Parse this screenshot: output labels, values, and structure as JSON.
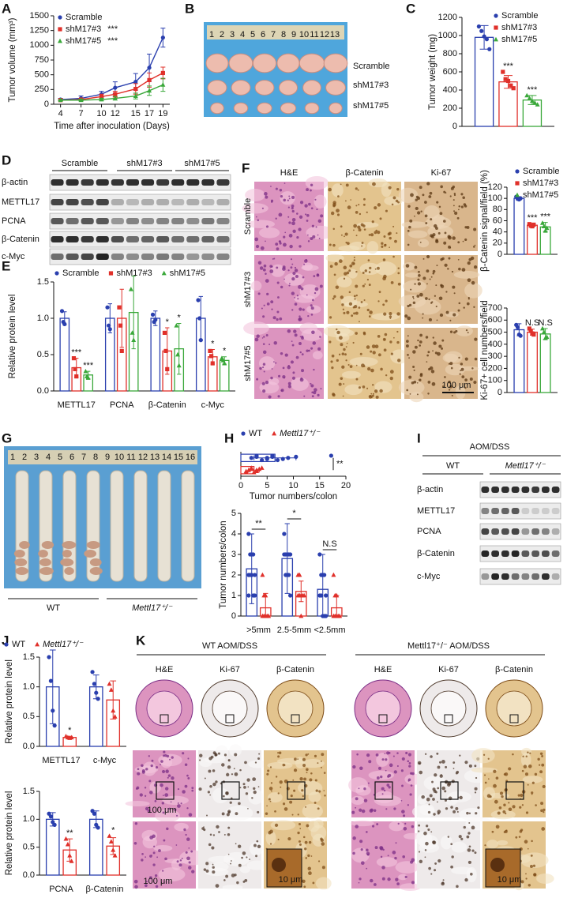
{
  "panel_labels": [
    "A",
    "B",
    "C",
    "D",
    "E",
    "F",
    "G",
    "H",
    "I",
    "J",
    "K"
  ],
  "photo_B": {
    "ruler": [
      1,
      2,
      3,
      4,
      5,
      6,
      7,
      8,
      9,
      10,
      11,
      12,
      13
    ],
    "rows": [
      "Scramble",
      "shM17#3",
      "shM17#5"
    ]
  },
  "blot_D": {
    "groups": [
      "Scramble",
      "shM17#3",
      "shM17#5"
    ],
    "rows": [
      "β-actin",
      "METTL17",
      "PCNA",
      "β-Catenin",
      "c-Myc"
    ]
  },
  "histology_F": {
    "columns": [
      "H&E",
      "β-Catenin",
      "Ki-67"
    ],
    "rows": [
      "Scramble",
      "shM17#3",
      "shM17#5"
    ],
    "scale": "100 μm"
  },
  "photo_G": {
    "ruler": [
      1,
      2,
      3,
      4,
      5,
      6,
      7,
      8,
      9,
      10,
      11,
      12,
      13,
      14,
      15,
      16
    ],
    "groups": [
      "WT",
      "Mettl17⁺/⁻"
    ]
  },
  "blot_I": {
    "title": "AOM/DSS",
    "groups": [
      "WT",
      "Mettl17⁺/⁻"
    ],
    "rows": [
      "β-actin",
      "METTL17",
      "PCNA",
      "β-Catenin",
      "c-Myc"
    ]
  },
  "histology_K": {
    "titles": [
      "WT AOM/DSS",
      "Mettl17⁺/⁻ AOM/DSS"
    ],
    "columns": [
      [
        "H&E",
        "Ki-67",
        "β-Catenin"
      ],
      [
        "H&E",
        "Ki-67",
        "β-Catenin"
      ]
    ],
    "scales": [
      "100 μm",
      "100 μm",
      "10 μm",
      "10 μm"
    ]
  },
  "chart_data": [
    {
      "type": "line",
      "ylabel": "Tumor volume (mm³)",
      "xlabel": "Time after inoculation (Days)",
      "x": [
        4,
        7,
        10,
        12,
        15,
        17,
        19
      ],
      "xlim": [
        3,
        20
      ],
      "xticks": [
        4,
        7,
        10,
        12,
        15,
        17,
        19
      ],
      "ylim": [
        0,
        1500
      ],
      "yticks": [
        0,
        250,
        500,
        750,
        1000,
        1250,
        1500
      ],
      "legend": "upper left",
      "series": [
        {
          "name": "Scramble",
          "color": "#2a3fae",
          "marker": "circle",
          "values": [
            80,
            100,
            170,
            280,
            380,
            620,
            1130
          ],
          "errors": [
            20,
            40,
            50,
            100,
            140,
            230,
            160
          ]
        },
        {
          "name": "shM17#3",
          "color": "#e0302a",
          "marker": "square",
          "values": [
            70,
            80,
            130,
            170,
            260,
            410,
            530
          ],
          "errors": [
            15,
            20,
            40,
            50,
            90,
            120,
            100
          ],
          "sig": "***"
        },
        {
          "name": "shM17#5",
          "color": "#3aa83a",
          "marker": "triangle",
          "values": [
            70,
            70,
            80,
            100,
            140,
            230,
            330
          ],
          "errors": [
            10,
            15,
            20,
            30,
            50,
            80,
            110
          ],
          "sig": "***"
        }
      ]
    },
    {
      "type": "bar",
      "ylabel": "Tumor weight (mg)",
      "categories": [
        null
      ],
      "ylim": [
        0,
        1200
      ],
      "yticks": [
        0,
        200,
        400,
        600,
        800,
        1000,
        1200
      ],
      "legend": "upper right",
      "series": [
        {
          "name": "Scramble",
          "color": "#2a3fae",
          "marker": "circle",
          "values": [
            980
          ],
          "errors": [
            130
          ],
          "points": [
            [
              1100,
              1050,
              990,
              960,
              850
            ]
          ]
        },
        {
          "name": "shM17#3",
          "color": "#e0302a",
          "marker": "square",
          "values": [
            490
          ],
          "errors": [
            70
          ],
          "points": [
            [
              600,
              520,
              500,
              450,
              420
            ]
          ],
          "sig": [
            "***"
          ]
        },
        {
          "name": "shM17#5",
          "color": "#3aa83a",
          "marker": "triangle",
          "values": [
            290
          ],
          "errors": [
            50
          ],
          "points": [
            [
              340,
              310,
              280,
              260,
              240
            ]
          ],
          "sig": [
            "***"
          ]
        }
      ]
    },
    {
      "type": "bar",
      "ylabel": "Relative protein level",
      "categories": [
        "METTL17",
        "PCNA",
        "β-Catenin",
        "c-Myc"
      ],
      "ylim": [
        0,
        1.5
      ],
      "yticks": [
        {
          "value": 0,
          "label": "0.0"
        },
        0.5,
        {
          "value": 1,
          "label": "1.0"
        },
        1.5
      ],
      "legend": "top",
      "series": [
        {
          "name": "Scramble",
          "color": "#2a3fae",
          "marker": "circle",
          "values": [
            1.0,
            1.0,
            1.0,
            1.0
          ],
          "errors": [
            0.09,
            0.2,
            0.1,
            0.3
          ],
          "points": [
            [
              1.1,
              0.95,
              0.92
            ],
            [
              1.15,
              0.9,
              0.85
            ],
            [
              1.05,
              0.95,
              0.98
            ],
            [
              1.25,
              1.0,
              0.7
            ]
          ]
        },
        {
          "name": "shM17#3",
          "color": "#e0302a",
          "marker": "square",
          "values": [
            0.32,
            1.0,
            0.55,
            0.47
          ],
          "errors": [
            0.13,
            0.4,
            0.32,
            0.1
          ],
          "points": [
            [
              0.45,
              0.3,
              0.2
            ],
            [
              1.15,
              0.9,
              0.55
            ],
            [
              0.8,
              0.55,
              0.3
            ],
            [
              0.55,
              0.48,
              0.38
            ]
          ],
          "sig": [
            "***",
            null,
            "*",
            "*"
          ]
        },
        {
          "name": "shM17#5",
          "color": "#3aa83a",
          "marker": "triangle",
          "values": [
            0.22,
            1.08,
            0.58,
            0.42
          ],
          "errors": [
            0.05,
            0.5,
            0.35,
            0.05
          ],
          "points": [
            [
              0.27,
              0.2,
              0.18
            ],
            [
              1.4,
              0.8,
              0.7
            ],
            [
              0.9,
              0.5,
              0.35
            ],
            [
              0.45,
              0.42,
              0.38
            ]
          ],
          "sig": [
            "***",
            null,
            "*",
            "*"
          ]
        }
      ]
    },
    {
      "type": "bar",
      "ylabel": "β-Catenin signal/field (%)",
      "categories": [
        null
      ],
      "ylim": [
        0,
        120
      ],
      "yticks": [
        0,
        20,
        40,
        60,
        80,
        100,
        120
      ],
      "legend": "above",
      "series": [
        {
          "name": "Scramble",
          "color": "#2a3fae",
          "marker": "circle",
          "values": [
            100
          ],
          "errors": [
            3
          ],
          "points": [
            [
              103,
              99,
              98,
              100
            ]
          ]
        },
        {
          "name": "shM17#3",
          "color": "#e0302a",
          "marker": "square",
          "values": [
            52
          ],
          "errors": [
            3
          ],
          "points": [
            [
              54,
              51,
              50,
              53
            ]
          ],
          "sig": [
            "***"
          ]
        },
        {
          "name": "shM17#5",
          "color": "#3aa83a",
          "marker": "triangle",
          "values": [
            49
          ],
          "errors": [
            8
          ],
          "points": [
            [
              56,
              50,
              42,
              47
            ]
          ],
          "sig": [
            "***"
          ]
        }
      ]
    },
    {
      "type": "bar",
      "ylabel": "Ki-67+ cell numbers/field",
      "categories": [
        null
      ],
      "ylim": [
        0,
        700
      ],
      "yticks": [
        0,
        100,
        200,
        300,
        400,
        500,
        600,
        700
      ],
      "series": [
        {
          "color": "#2a3fae",
          "marker": "circle",
          "values": [
            520
          ],
          "errors": [
            50
          ],
          "points": [
            [
              560,
              540,
              480,
              470
            ]
          ]
        },
        {
          "color": "#e0302a",
          "marker": "square",
          "values": [
            500
          ],
          "errors": [
            25
          ],
          "points": [
            [
              530,
              510,
              490,
              480
            ]
          ],
          "sig": [
            "N.S"
          ]
        },
        {
          "color": "#3aa83a",
          "marker": "triangle",
          "values": [
            485
          ],
          "errors": [
            45
          ],
          "points": [
            [
              530,
              500,
              450,
              460
            ]
          ],
          "sig": [
            "N.S"
          ]
        }
      ]
    },
    {
      "type": "hbar",
      "xlabel": "Tumor numbers/colon",
      "categories": [
        null
      ],
      "xlim": [
        0,
        20
      ],
      "xticks": [
        0,
        5,
        10,
        15,
        20
      ],
      "legend": "top",
      "category_sig": [
        "**"
      ],
      "series": [
        {
          "name": "WT",
          "color": "#2a3fae",
          "marker": "circle",
          "values": [
            6.5
          ],
          "errors": [
            4
          ],
          "points": [
            [
              17.2,
              10.5,
              9,
              8,
              7,
              6,
              6,
              5,
              5,
              4,
              3,
              3,
              2
            ]
          ]
        },
        {
          "name": "Mettl17⁺/⁻",
          "color": "#e0302a",
          "marker": "triangle",
          "values": [
            2.5
          ],
          "errors": [
            1
          ],
          "points": [
            [
              4,
              3.5,
              3,
              3,
              2.5,
              2,
              2,
              1.5,
              1,
              1
            ]
          ]
        }
      ]
    },
    {
      "type": "bar",
      "ylabel": "Tumor numbers/colon",
      "categories": [
        ">5mm",
        "2.5-5mm",
        "<2.5mm"
      ],
      "ylim": [
        0,
        5
      ],
      "yticks": [
        0,
        1,
        2,
        3,
        4,
        5
      ],
      "category_sig": [
        "**",
        "*",
        "N.S"
      ],
      "series": [
        {
          "color": "#2a3fae",
          "marker": "circle",
          "values": [
            2.3,
            2.8,
            1.3
          ],
          "errors": [
            1.7,
            1.7,
            1.7
          ],
          "points": [
            [
              4,
              3,
              3,
              3,
              2,
              2,
              2,
              2,
              1,
              1,
              1
            ],
            [
              4,
              3,
              3,
              3,
              3,
              3,
              2,
              2,
              2,
              1
            ],
            [
              3,
              2,
              2,
              2,
              1,
              1,
              1,
              0,
              0,
              0
            ]
          ]
        },
        {
          "color": "#e0302a",
          "marker": "triangle",
          "values": [
            0.4,
            1.2,
            0.4
          ],
          "errors": [
            0.7,
            0.5,
            0.6
          ],
          "points": [
            [
              2,
              1,
              1,
              0,
              0,
              0,
              0,
              0
            ],
            [
              2,
              2,
              1,
              1,
              1,
              1,
              1,
              0
            ],
            [
              2,
              1,
              1,
              0,
              0,
              0,
              0,
              0
            ]
          ]
        }
      ]
    },
    {
      "type": "bar",
      "ylabel": "Relative protein level",
      "categories": [
        "METTL17",
        "c-Myc"
      ],
      "ylim": [
        0,
        1.5
      ],
      "yticks": [
        {
          "value": 0,
          "label": "0.0"
        },
        0.5,
        {
          "value": 1,
          "label": "1.0"
        },
        1.5
      ],
      "legend": "top",
      "series": [
        {
          "name": "WT",
          "color": "#2a3fae",
          "marker": "circle",
          "values": [
            1.0,
            1.0
          ],
          "errors": [
            0.62,
            0.2
          ],
          "points": [
            [
              1.5,
              1.1,
              0.6,
              0.35
            ],
            [
              1.25,
              1.05,
              0.9,
              0.8
            ]
          ]
        },
        {
          "name": "Mettl17⁺/⁻",
          "color": "#e0302a",
          "marker": "triangle",
          "values": [
            0.15,
            0.78
          ],
          "errors": [
            0.02,
            0.32
          ],
          "points": [
            [
              0.17,
              0.15,
              0.14,
              0.15
            ],
            [
              1.05,
              0.95,
              0.6,
              0.5
            ]
          ],
          "sig": [
            "*",
            null
          ]
        }
      ]
    },
    {
      "type": "bar",
      "ylabel": "Relative protein level",
      "categories": [
        "PCNA",
        "β-Catenin"
      ],
      "ylim": [
        0,
        1.5
      ],
      "yticks": [
        {
          "value": 0,
          "label": "0.0"
        },
        0.5,
        {
          "value": 1,
          "label": "1.0"
        },
        1.5
      ],
      "series": [
        {
          "color": "#2a3fae",
          "marker": "circle",
          "values": [
            1.0,
            1.0
          ],
          "errors": [
            0.12,
            0.15
          ],
          "points": [
            [
              1.1,
              1.05,
              0.95,
              0.9
            ],
            [
              1.15,
              1.1,
              0.9,
              0.85
            ]
          ]
        },
        {
          "color": "#e0302a",
          "marker": "triangle",
          "values": [
            0.45,
            0.52
          ],
          "errors": [
            0.2,
            0.15
          ],
          "points": [
            [
              0.65,
              0.55,
              0.35,
              0.25
            ],
            [
              0.7,
              0.6,
              0.45,
              0.35
            ]
          ],
          "sig": [
            "**",
            "*"
          ]
        }
      ]
    }
  ]
}
